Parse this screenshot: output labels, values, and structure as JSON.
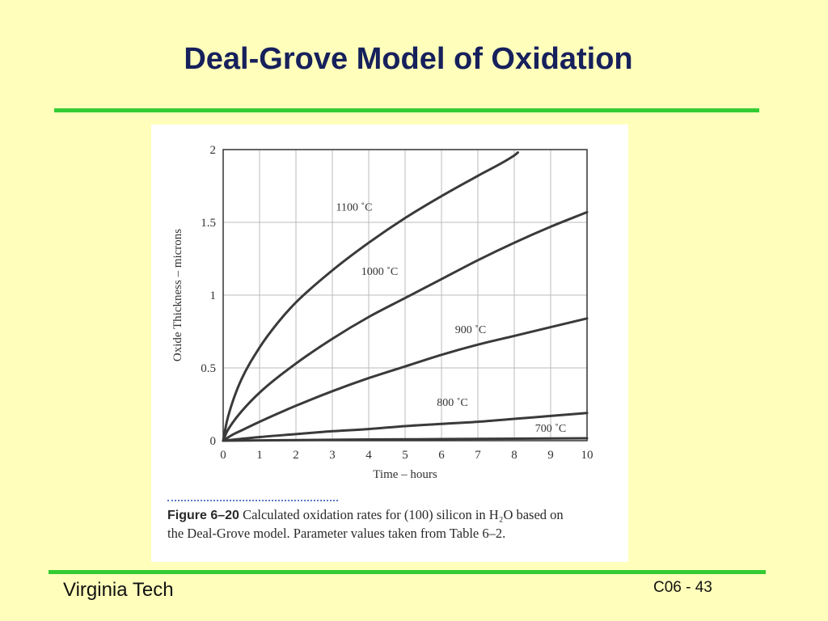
{
  "slide": {
    "title": "Deal-Grove Model of Oxidation",
    "footer_left": "Virginia Tech",
    "footer_right": "C06 - 43",
    "accent_color": "#33CC33",
    "background_color": "#FFFFBB",
    "title_color": "#16205C"
  },
  "figure": {
    "label": "Figure 6–20",
    "caption_line1": "Calculated oxidation rates for (100) silicon in H₂O based on",
    "caption_line2": "the Deal-Grove model. Parameter values taken from Table 6–2."
  },
  "chart_data": {
    "type": "line",
    "xlabel": "Time – hours",
    "ylabel": "Oxide Thickness – microns",
    "xlim": [
      0,
      10
    ],
    "ylim": [
      0,
      2
    ],
    "x_ticks": [
      0,
      1,
      2,
      3,
      4,
      5,
      6,
      7,
      8,
      9,
      10
    ],
    "x_tick_labels": [
      "0",
      "1",
      "2",
      "3",
      "4",
      "5",
      "6",
      "7",
      "8",
      "9",
      "10"
    ],
    "y_ticks": [
      0,
      0.5,
      1,
      1.5,
      2
    ],
    "y_tick_labels": [
      "0",
      "0.5",
      "1",
      "1.5",
      "2"
    ],
    "grid": true,
    "series": [
      {
        "name": "1100 ˚C",
        "x": [
          0,
          0.1,
          0.25,
          0.5,
          1,
          1.5,
          2,
          3,
          4,
          5,
          6,
          7,
          8,
          8.1
        ],
        "y": [
          0,
          0.13,
          0.26,
          0.42,
          0.64,
          0.81,
          0.95,
          1.17,
          1.36,
          1.53,
          1.68,
          1.82,
          1.96,
          1.98
        ]
      },
      {
        "name": "1000 ˚C",
        "x": [
          0,
          0.1,
          0.25,
          0.5,
          1,
          2,
          3,
          4,
          5,
          6,
          7,
          8,
          9,
          10
        ],
        "y": [
          0,
          0.06,
          0.12,
          0.2,
          0.33,
          0.53,
          0.7,
          0.85,
          0.98,
          1.11,
          1.24,
          1.36,
          1.47,
          1.57
        ]
      },
      {
        "name": "900 ˚C",
        "x": [
          0,
          0.25,
          0.5,
          1,
          2,
          3,
          4,
          5,
          6,
          7,
          8,
          9,
          10
        ],
        "y": [
          0,
          0.04,
          0.07,
          0.13,
          0.24,
          0.34,
          0.43,
          0.51,
          0.59,
          0.66,
          0.72,
          0.78,
          0.84
        ]
      },
      {
        "name": "800 ˚C",
        "x": [
          0,
          1,
          2,
          3,
          4,
          5,
          6,
          7,
          8,
          9,
          10
        ],
        "y": [
          0,
          0.025,
          0.045,
          0.065,
          0.08,
          0.1,
          0.115,
          0.13,
          0.15,
          0.17,
          0.19
        ]
      },
      {
        "name": "700 ˚C",
        "x": [
          0,
          2,
          4,
          6,
          8,
          10
        ],
        "y": [
          0,
          0.004,
          0.008,
          0.011,
          0.014,
          0.017
        ]
      }
    ]
  }
}
